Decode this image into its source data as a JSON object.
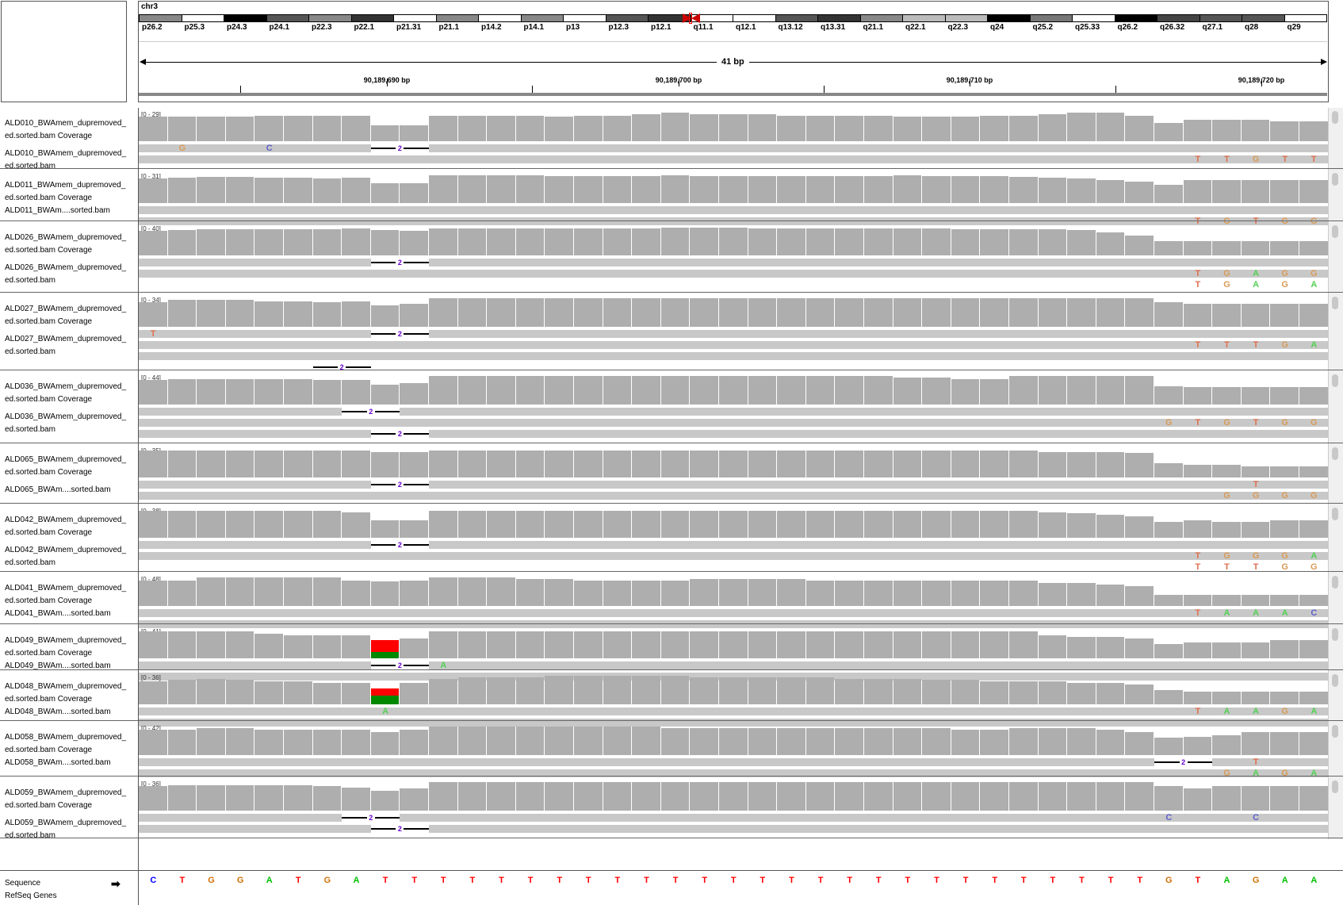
{
  "chromosome": {
    "name": "chr3",
    "bands": [
      {
        "label": "p26.2",
        "shade": "#888"
      },
      {
        "label": "p25.3",
        "shade": "#fff"
      },
      {
        "label": "p24.3",
        "shade": "#000"
      },
      {
        "label": "p24.1",
        "shade": "#555"
      },
      {
        "label": "p22.3",
        "shade": "#888"
      },
      {
        "label": "p22.1",
        "shade": "#333"
      },
      {
        "label": "p21.31",
        "shade": "#fff"
      },
      {
        "label": "p21.1",
        "shade": "#888"
      },
      {
        "label": "p14.2",
        "shade": "#fff"
      },
      {
        "label": "p14.1",
        "shade": "#888"
      },
      {
        "label": "p13",
        "shade": "#fff"
      },
      {
        "label": "p12.3",
        "shade": "#555"
      },
      {
        "label": "p12.1",
        "shade": "#333"
      },
      {
        "label": "q11.1",
        "shade": "#fff"
      },
      {
        "label": "q12.1",
        "shade": "#fff"
      },
      {
        "label": "q13.12",
        "shade": "#555"
      },
      {
        "label": "q13.31",
        "shade": "#333"
      },
      {
        "label": "q21.1",
        "shade": "#888"
      },
      {
        "label": "q22.1",
        "shade": "#bbb"
      },
      {
        "label": "q22.3",
        "shade": "#bbb"
      },
      {
        "label": "q24",
        "shade": "#000"
      },
      {
        "label": "q25.2",
        "shade": "#777"
      },
      {
        "label": "q25.33",
        "shade": "#fff"
      },
      {
        "label": "q26.2",
        "shade": "#000"
      },
      {
        "label": "q26.32",
        "shade": "#444"
      },
      {
        "label": "q27.1",
        "shade": "#555"
      },
      {
        "label": "q28",
        "shade": "#555"
      },
      {
        "label": "q29",
        "shade": "#fff"
      }
    ]
  },
  "ruler": {
    "span_label": "41 bp",
    "ticks": [
      "90,189,690 bp",
      "90,189,700 bp",
      "90,189,710 bp",
      "90,189,720 bp"
    ]
  },
  "tracks": [
    {
      "cov_name": "ALD010_BWAmem_dupremoved_",
      "cov_name2": "ed.sorted.bam Coverage",
      "range": "[0 - 29]",
      "bam_name": "ALD010_BWAmem_dupremoved_",
      "bam_name2": "ed.sorted.bam",
      "profile": [
        0.85,
        0.85,
        0.85,
        0.85,
        0.9,
        0.9,
        0.9,
        0.9,
        0.55,
        0.55,
        0.9,
        0.9,
        0.9,
        0.9,
        0.85,
        0.9,
        0.9,
        0.95,
        1,
        0.95,
        0.95,
        0.95,
        0.9,
        0.9,
        0.9,
        0.9,
        0.85,
        0.85,
        0.85,
        0.9,
        0.9,
        0.95,
        1,
        1,
        0.9,
        0.65,
        0.75,
        0.75,
        0.75,
        0.7,
        0.7
      ],
      "bases": [
        {
          "pos": 1,
          "b": "G",
          "row": 0
        },
        {
          "pos": 4,
          "b": "C",
          "row": 0
        },
        {
          "pos": 36,
          "b": "T",
          "row": 1
        },
        {
          "pos": 37,
          "b": "T",
          "row": 1
        },
        {
          "pos": 38,
          "b": "G",
          "row": 1
        },
        {
          "pos": 39,
          "b": "T",
          "row": 1
        },
        {
          "pos": 40,
          "b": "T",
          "row": 1
        }
      ],
      "dels": [
        {
          "pos": 8,
          "row": 0,
          "n": "2"
        }
      ]
    },
    {
      "cov_name": "ALD011_BWAmem_dupremoved_",
      "cov_name2": "ed.sorted.bam Coverage",
      "range": "[0 - 31]",
      "bam_name": "ALD011_BWAm....sorted.bam",
      "bam_name2": "",
      "profile": [
        0.85,
        0.9,
        0.92,
        0.92,
        0.9,
        0.9,
        0.85,
        0.88,
        0.7,
        0.7,
        0.97,
        0.97,
        0.97,
        0.97,
        0.95,
        0.95,
        0.95,
        0.95,
        0.97,
        0.95,
        0.95,
        0.95,
        0.95,
        0.95,
        0.95,
        0.95,
        0.97,
        0.95,
        0.95,
        0.95,
        0.92,
        0.9,
        0.85,
        0.8,
        0.75,
        0.65,
        0.8,
        0.8,
        0.8,
        0.8,
        0.8
      ],
      "bases": [
        {
          "pos": 36,
          "b": "T",
          "row": 1
        },
        {
          "pos": 37,
          "b": "G",
          "row": 1
        },
        {
          "pos": 38,
          "b": "T",
          "row": 1
        },
        {
          "pos": 39,
          "b": "G",
          "row": 1
        },
        {
          "pos": 40,
          "b": "G",
          "row": 1
        }
      ],
      "dels": []
    },
    {
      "cov_name": "ALD026_BWAmem_dupremoved_",
      "cov_name2": "ed.sorted.bam Coverage",
      "range": "[0 - 40]",
      "bam_name": "ALD026_BWAmem_dupremoved_",
      "bam_name2": "ed.sorted.bam",
      "profile": [
        0.85,
        0.9,
        0.92,
        0.92,
        0.92,
        0.92,
        0.92,
        0.95,
        0.88,
        0.85,
        0.95,
        0.95,
        0.95,
        0.95,
        0.95,
        0.95,
        0.95,
        0.95,
        0.97,
        0.97,
        0.97,
        0.95,
        0.95,
        0.95,
        0.95,
        0.95,
        0.95,
        0.95,
        0.92,
        0.92,
        0.92,
        0.92,
        0.9,
        0.8,
        0.7,
        0.5,
        0.5,
        0.5,
        0.5,
        0.5,
        0.5
      ],
      "bases": [
        {
          "pos": 36,
          "b": "T",
          "row": 1
        },
        {
          "pos": 37,
          "b": "G",
          "row": 1
        },
        {
          "pos": 38,
          "b": "A",
          "row": 1
        },
        {
          "pos": 39,
          "b": "G",
          "row": 1
        },
        {
          "pos": 40,
          "b": "G",
          "row": 1
        },
        {
          "pos": 36,
          "b": "T",
          "row": 2
        },
        {
          "pos": 37,
          "b": "G",
          "row": 2
        },
        {
          "pos": 38,
          "b": "A",
          "row": 2
        },
        {
          "pos": 39,
          "b": "G",
          "row": 2
        },
        {
          "pos": 40,
          "b": "A",
          "row": 2
        }
      ],
      "dels": [
        {
          "pos": 8,
          "row": 0,
          "n": "2"
        }
      ]
    },
    {
      "cov_name": "ALD027_BWAmem_dupremoved_",
      "cov_name2": "ed.sorted.bam Coverage",
      "range": "[0 - 34]",
      "bam_name": "ALD027_BWAmem_dupremoved_",
      "bam_name2": "ed.sorted.bam",
      "profile": [
        0.85,
        0.95,
        0.95,
        0.95,
        0.9,
        0.9,
        0.85,
        0.88,
        0.75,
        0.8,
        1,
        1,
        1,
        1,
        1,
        1,
        1,
        1,
        1,
        1,
        1,
        1,
        1,
        1,
        1,
        1,
        1,
        1,
        1,
        1,
        1,
        1,
        1,
        1,
        1,
        0.85,
        0.8,
        0.8,
        0.8,
        0.8,
        0.8
      ],
      "bases": [
        {
          "pos": 0,
          "b": "T",
          "row": 0
        },
        {
          "pos": 36,
          "b": "T",
          "row": 1
        },
        {
          "pos": 37,
          "b": "T",
          "row": 1
        },
        {
          "pos": 38,
          "b": "T",
          "row": 1
        },
        {
          "pos": 39,
          "b": "G",
          "row": 1
        },
        {
          "pos": 40,
          "b": "A",
          "row": 1
        }
      ],
      "dels": [
        {
          "pos": 8,
          "row": 0,
          "n": "2"
        },
        {
          "pos": 6,
          "row": 3,
          "n": "2"
        }
      ]
    },
    {
      "cov_name": "ALD036_BWAmem_dupremoved_",
      "cov_name2": "ed.sorted.bam Coverage",
      "range": "[0 - 44]",
      "bam_name": "ALD036_BWAmem_dupremoved_",
      "bam_name2": "ed.sorted.bam",
      "profile": [
        0.85,
        0.9,
        0.88,
        0.88,
        0.88,
        0.88,
        0.85,
        0.85,
        0.7,
        0.75,
        1,
        1,
        1,
        1,
        1,
        1,
        1,
        1,
        1,
        1,
        1,
        1,
        1,
        1,
        1,
        1,
        0.95,
        0.95,
        0.9,
        0.9,
        1,
        1,
        1,
        1,
        1,
        0.65,
        0.6,
        0.6,
        0.6,
        0.6,
        0.6
      ],
      "bases": [
        {
          "pos": 35,
          "b": "G",
          "row": 1
        },
        {
          "pos": 36,
          "b": "T",
          "row": 1
        },
        {
          "pos": 37,
          "b": "G",
          "row": 1
        },
        {
          "pos": 38,
          "b": "T",
          "row": 1
        },
        {
          "pos": 39,
          "b": "G",
          "row": 1
        },
        {
          "pos": 40,
          "b": "G",
          "row": 1
        }
      ],
      "dels": [
        {
          "pos": 7,
          "row": 0,
          "n": "2"
        },
        {
          "pos": 8,
          "row": 2,
          "n": "2"
        }
      ]
    },
    {
      "cov_name": "ALD065_BWAmem_dupremoved_",
      "cov_name2": "ed.sorted.bam Coverage",
      "range": "[0 - 35]",
      "bam_name": "ALD065_BWAm....sorted.bam",
      "bam_name2": "",
      "profile": [
        0.95,
        0.95,
        0.95,
        0.95,
        0.95,
        0.95,
        0.95,
        0.95,
        0.9,
        0.9,
        0.95,
        0.95,
        0.95,
        0.95,
        0.95,
        0.95,
        0.95,
        0.95,
        0.95,
        0.95,
        0.95,
        0.95,
        0.95,
        0.95,
        0.95,
        0.95,
        0.95,
        0.95,
        0.95,
        0.95,
        0.95,
        0.9,
        0.9,
        0.9,
        0.85,
        0.5,
        0.45,
        0.45,
        0.4,
        0.4,
        0.4
      ],
      "bases": [
        {
          "pos": 38,
          "b": "T",
          "row": 0
        },
        {
          "pos": 37,
          "b": "G",
          "row": 1
        },
        {
          "pos": 38,
          "b": "G",
          "row": 1
        },
        {
          "pos": 39,
          "b": "G",
          "row": 1
        },
        {
          "pos": 40,
          "b": "G",
          "row": 1
        }
      ],
      "dels": [
        {
          "pos": 8,
          "row": 0,
          "n": "2"
        }
      ]
    },
    {
      "cov_name": "ALD042_BWAmem_dupremoved_",
      "cov_name2": "ed.sorted.bam Coverage",
      "range": "[0 - 38]",
      "bam_name": "ALD042_BWAmem_dupremoved_",
      "bam_name2": "ed.sorted.bam",
      "profile": [
        0.95,
        0.95,
        0.95,
        0.95,
        0.95,
        0.95,
        0.95,
        0.9,
        0.6,
        0.6,
        0.95,
        0.95,
        0.95,
        0.95,
        0.95,
        0.95,
        0.95,
        0.95,
        0.95,
        0.95,
        0.95,
        0.95,
        0.95,
        0.95,
        0.95,
        0.95,
        0.95,
        0.95,
        0.95,
        0.95,
        0.95,
        0.9,
        0.85,
        0.8,
        0.75,
        0.55,
        0.6,
        0.55,
        0.55,
        0.6,
        0.6
      ],
      "bases": [
        {
          "pos": 36,
          "b": "T",
          "row": 1
        },
        {
          "pos": 37,
          "b": "G",
          "row": 1
        },
        {
          "pos": 38,
          "b": "G",
          "row": 1
        },
        {
          "pos": 39,
          "b": "G",
          "row": 1
        },
        {
          "pos": 40,
          "b": "A",
          "row": 1
        },
        {
          "pos": 36,
          "b": "T",
          "row": 2
        },
        {
          "pos": 37,
          "b": "T",
          "row": 2
        },
        {
          "pos": 38,
          "b": "T",
          "row": 2
        },
        {
          "pos": 39,
          "b": "G",
          "row": 2
        },
        {
          "pos": 40,
          "b": "G",
          "row": 2
        }
      ],
      "dels": [
        {
          "pos": 8,
          "row": 0,
          "n": "2"
        }
      ]
    },
    {
      "cov_name": "ALD041_BWAmem_dupremoved_",
      "cov_name2": "ed.sorted.bam Coverage",
      "range": "[0 - 48]",
      "bam_name": "ALD041_BWAm....sorted.bam",
      "bam_name2": "",
      "profile": [
        0.9,
        0.9,
        1,
        1,
        1,
        1,
        1,
        0.9,
        0.85,
        0.9,
        1,
        1,
        1,
        0.95,
        0.95,
        0.9,
        0.9,
        0.9,
        0.9,
        0.95,
        0.95,
        0.95,
        0.95,
        0.9,
        0.9,
        0.9,
        0.9,
        0.9,
        0.9,
        0.9,
        0.9,
        0.8,
        0.8,
        0.75,
        0.7,
        0.4,
        0.4,
        0.4,
        0.4,
        0.4,
        0.4
      ],
      "bases": [
        {
          "pos": 36,
          "b": "T",
          "row": 0
        },
        {
          "pos": 37,
          "b": "A",
          "row": 0
        },
        {
          "pos": 38,
          "b": "A",
          "row": 0
        },
        {
          "pos": 39,
          "b": "A",
          "row": 0
        },
        {
          "pos": 40,
          "b": "C",
          "row": 0
        }
      ],
      "dels": []
    },
    {
      "cov_name": "ALD049_BWAmem_dupremoved_",
      "cov_name2": "ed.sorted.bam Coverage",
      "range": "[0 - 41]",
      "bam_name": "ALD049_BWAm....sorted.bam",
      "bam_name2": "",
      "profile": [
        0.95,
        0.95,
        0.95,
        0.95,
        0.85,
        0.8,
        0.8,
        0.8,
        0.7,
        0.7,
        0.95,
        0.95,
        0.95,
        0.95,
        0.95,
        0.95,
        0.95,
        0.95,
        0.95,
        0.95,
        0.95,
        0.95,
        0.95,
        0.95,
        0.95,
        0.95,
        0.95,
        0.95,
        0.95,
        0.95,
        0.95,
        0.8,
        0.75,
        0.75,
        0.7,
        0.5,
        0.55,
        0.55,
        0.55,
        0.65,
        0.65
      ],
      "bases": [
        {
          "pos": 10,
          "b": "A",
          "row": 0
        }
      ],
      "dels": [
        {
          "pos": 8,
          "row": 0,
          "n": "2"
        }
      ],
      "variant": {
        "pos": 8,
        "red": 0.6,
        "green": 0.3
      }
    },
    {
      "cov_name": "ALD048_BWAmem_dupremoved_",
      "cov_name2": "ed.sorted.bam Coverage",
      "range": "[0 - 36]",
      "bam_name": "ALD048_BWAm....sorted.bam",
      "bam_name2": "",
      "profile": [
        0.8,
        0.85,
        0.88,
        0.85,
        0.8,
        0.8,
        0.75,
        0.75,
        0.7,
        0.75,
        0.9,
        0.95,
        0.95,
        0.95,
        1,
        1,
        1,
        1,
        1,
        0.95,
        0.95,
        0.95,
        0.95,
        0.95,
        0.9,
        0.9,
        0.9,
        0.85,
        0.85,
        0.8,
        0.8,
        0.8,
        0.75,
        0.75,
        0.7,
        0.5,
        0.45,
        0.45,
        0.45,
        0.45,
        0.45
      ],
      "bases": [
        {
          "pos": 8,
          "b": "A",
          "row": 0
        },
        {
          "pos": 36,
          "b": "T",
          "row": 0
        },
        {
          "pos": 37,
          "b": "A",
          "row": 0
        },
        {
          "pos": 38,
          "b": "A",
          "row": 0
        },
        {
          "pos": 39,
          "b": "G",
          "row": 0
        },
        {
          "pos": 40,
          "b": "A",
          "row": 0
        }
      ],
      "dels": [],
      "variant": {
        "pos": 8,
        "red": 0.35,
        "green": 0.45
      }
    },
    {
      "cov_name": "ALD058_BWAmem_dupremoved_",
      "cov_name2": "ed.sorted.bam Coverage",
      "range": "[0 - 42]",
      "bam_name": "ALD058_BWAm....sorted.bam",
      "bam_name2": "",
      "profile": [
        0.9,
        0.9,
        0.95,
        0.95,
        0.9,
        0.9,
        0.9,
        0.9,
        0.8,
        0.9,
        1,
        1,
        1,
        1,
        1,
        1,
        1,
        1,
        0.95,
        0.95,
        0.95,
        0.95,
        0.95,
        0.95,
        0.95,
        0.95,
        0.95,
        0.95,
        0.9,
        0.9,
        0.95,
        0.95,
        0.95,
        0.9,
        0.8,
        0.6,
        0.65,
        0.7,
        0.8,
        0.8,
        0.8
      ],
      "bases": [
        {
          "pos": 38,
          "b": "T",
          "row": 0
        },
        {
          "pos": 37,
          "b": "G",
          "row": 1
        },
        {
          "pos": 38,
          "b": "A",
          "row": 1
        },
        {
          "pos": 39,
          "b": "G",
          "row": 1
        },
        {
          "pos": 40,
          "b": "A",
          "row": 1
        }
      ],
      "dels": [
        {
          "pos": 35,
          "row": 0,
          "n": "2"
        }
      ]
    },
    {
      "cov_name": "ALD059_BWAmem_dupremoved_",
      "cov_name2": "ed.sorted.bam Coverage",
      "range": "[0 - 36]",
      "bam_name": "ALD059_BWAmem_dupremoved_",
      "bam_name2": "ed.sorted.bam",
      "profile": [
        0.85,
        0.88,
        0.88,
        0.88,
        0.88,
        0.88,
        0.85,
        0.8,
        0.7,
        0.78,
        1,
        1,
        1,
        1,
        1,
        1,
        1,
        1,
        1,
        1,
        1,
        1,
        1,
        1,
        1,
        1,
        1,
        1,
        1,
        1,
        1,
        1,
        1,
        1,
        1,
        0.85,
        0.78,
        0.85,
        0.85,
        0.85,
        0.85
      ],
      "bases": [
        {
          "pos": 35,
          "b": "C",
          "row": 0
        },
        {
          "pos": 38,
          "b": "C",
          "row": 0
        }
      ],
      "dels": [
        {
          "pos": 7,
          "row": 0,
          "n": "2"
        },
        {
          "pos": 8,
          "row": 1,
          "n": "2"
        }
      ]
    }
  ],
  "sequence": {
    "label": "Sequence",
    "genes_label": "RefSeq Genes",
    "bases": [
      "C",
      "T",
      "G",
      "G",
      "A",
      "T",
      "G",
      "A",
      "T",
      "T",
      "T",
      "T",
      "T",
      "T",
      "T",
      "T",
      "T",
      "T",
      "T",
      "T",
      "T",
      "T",
      "T",
      "T",
      "T",
      "T",
      "T",
      "T",
      "T",
      "T",
      "T",
      "T",
      "T",
      "T",
      "T",
      "G",
      "T",
      "A",
      "G",
      "A",
      "A"
    ]
  },
  "colors": {
    "A": "#00c000",
    "C": "#0000ff",
    "G": "#d17105",
    "T": "#ff0000",
    "mm_G": "#d99a55",
    "mm_T": "#e07050",
    "mm_A": "#55d055",
    "mm_C": "#6060cc"
  }
}
